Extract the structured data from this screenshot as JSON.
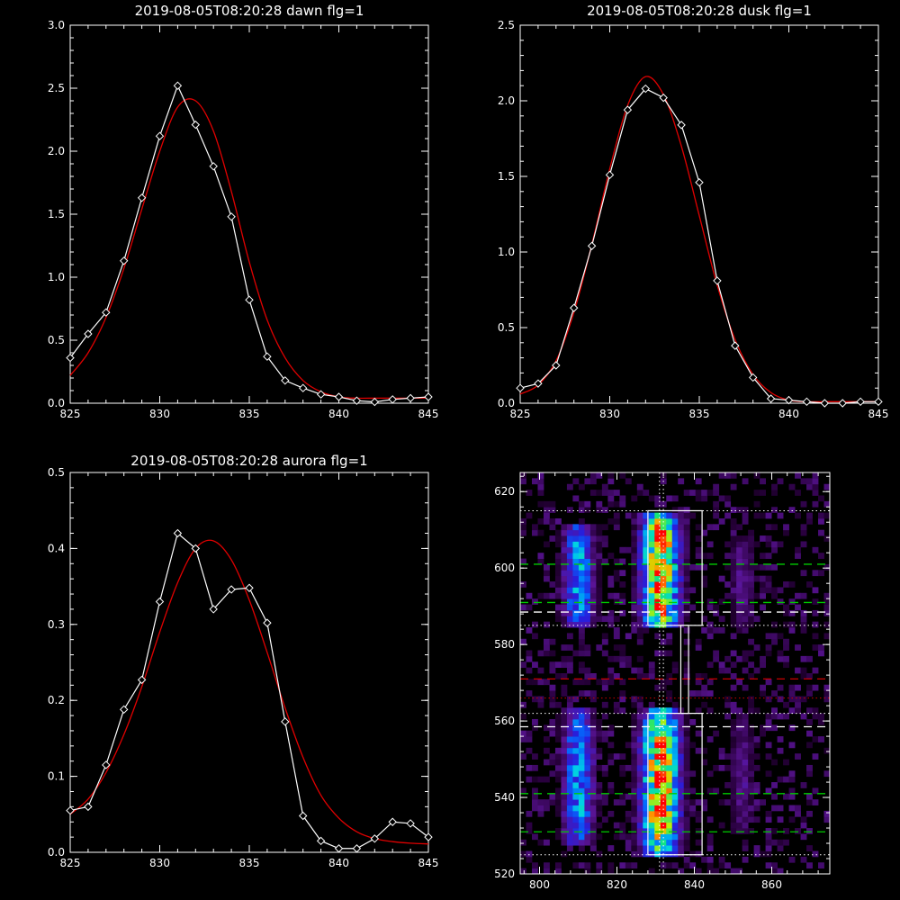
{
  "colors": {
    "background": "#000000",
    "axis": "#ffffff",
    "data": "#ffffff",
    "fit": "#e00000",
    "green_dash": "#00cc00",
    "red_dash": "#cc0000",
    "white_dash": "#ffffff"
  },
  "chart_data": [
    {
      "type": "line",
      "title": "2019-08-05T08:20:28 dawn flg=1",
      "xlabel": "",
      "ylabel": "",
      "xlim": [
        825,
        845
      ],
      "ylim": [
        0,
        3.0
      ],
      "xticks": [
        "825",
        "830",
        "835",
        "840",
        "845"
      ],
      "yticks": [
        "0.0",
        "0.5",
        "1.0",
        "1.5",
        "2.0",
        "2.5",
        "3.0"
      ],
      "x": [
        825,
        826,
        827,
        828,
        829,
        830,
        831,
        832,
        833,
        834,
        835,
        836,
        837,
        838,
        839,
        840,
        841,
        842,
        843,
        844,
        845
      ],
      "series": [
        {
          "role": "data",
          "marker": "diamond",
          "values": [
            0.36,
            0.55,
            0.72,
            1.13,
            1.63,
            2.12,
            2.52,
            2.21,
            1.88,
            1.48,
            0.82,
            0.37,
            0.18,
            0.12,
            0.07,
            0.05,
            0.02,
            0.01,
            0.03,
            0.04,
            0.05
          ]
        },
        {
          "role": "fit",
          "values": [
            0.22,
            0.4,
            0.68,
            1.07,
            1.54,
            2.0,
            2.35,
            2.4,
            2.16,
            1.68,
            1.12,
            0.66,
            0.36,
            0.18,
            0.09,
            0.05,
            0.04,
            0.04,
            0.04,
            0.04,
            0.04
          ]
        }
      ]
    },
    {
      "type": "line",
      "title": "2019-08-05T08:20:28 dusk flg=1",
      "xlabel": "",
      "ylabel": "",
      "xlim": [
        825,
        845
      ],
      "ylim": [
        0,
        2.5
      ],
      "xticks": [
        "825",
        "830",
        "835",
        "840",
        "845"
      ],
      "yticks": [
        "0.0",
        "0.5",
        "1.0",
        "1.5",
        "2.0",
        "2.5"
      ],
      "x": [
        825,
        826,
        827,
        828,
        829,
        830,
        831,
        832,
        833,
        834,
        835,
        836,
        837,
        838,
        839,
        840,
        841,
        842,
        843,
        844,
        845
      ],
      "series": [
        {
          "role": "data",
          "marker": "diamond",
          "values": [
            0.1,
            0.13,
            0.25,
            0.63,
            1.04,
            1.51,
            1.94,
            2.08,
            2.02,
            1.84,
            1.46,
            0.81,
            0.38,
            0.17,
            0.03,
            0.02,
            0.01,
            0.0,
            0.0,
            0.01,
            0.01
          ]
        },
        {
          "role": "fit",
          "values": [
            0.06,
            0.12,
            0.28,
            0.6,
            1.05,
            1.55,
            1.97,
            2.16,
            2.04,
            1.7,
            1.24,
            0.78,
            0.42,
            0.19,
            0.07,
            0.02,
            0.01,
            0.01,
            0.01,
            0.01,
            0.01
          ]
        }
      ]
    },
    {
      "type": "line",
      "title": "2019-08-05T08:20:28 aurora flg=1",
      "xlabel": "",
      "ylabel": "",
      "xlim": [
        825,
        845
      ],
      "ylim": [
        0,
        0.5
      ],
      "xticks": [
        "825",
        "830",
        "835",
        "840",
        "845"
      ],
      "yticks": [
        "0.0",
        "0.1",
        "0.2",
        "0.3",
        "0.4",
        "0.5"
      ],
      "x": [
        825,
        826,
        827,
        828,
        829,
        830,
        831,
        832,
        833,
        834,
        835,
        836,
        837,
        838,
        839,
        840,
        841,
        842,
        843,
        844,
        845
      ],
      "series": [
        {
          "role": "data",
          "marker": "diamond",
          "values": [
            0.055,
            0.06,
            0.115,
            0.188,
            0.227,
            0.33,
            0.42,
            0.4,
            0.32,
            0.346,
            0.348,
            0.302,
            0.172,
            0.048,
            0.015,
            0.005,
            0.005,
            0.018,
            0.04,
            0.038,
            0.02
          ]
        },
        {
          "role": "fit",
          "values": [
            0.05,
            0.07,
            0.105,
            0.155,
            0.218,
            0.29,
            0.355,
            0.4,
            0.41,
            0.385,
            0.332,
            0.263,
            0.19,
            0.125,
            0.075,
            0.045,
            0.027,
            0.018,
            0.014,
            0.012,
            0.011
          ]
        }
      ]
    },
    {
      "type": "heatmap",
      "title": "",
      "xlim": [
        795,
        875
      ],
      "ylim": [
        520,
        625
      ],
      "xticks": [
        "800",
        "820",
        "840",
        "860"
      ],
      "yticks": [
        "520",
        "540",
        "560",
        "580",
        "600",
        "620"
      ],
      "bands": [
        {
          "x": 810,
          "width": 5,
          "strength": 0.55,
          "segments": [
            [
              585,
              612
            ],
            [
              527,
              563
            ]
          ]
        },
        {
          "x": 831,
          "width": 6,
          "strength": 1.0,
          "segments": [
            [
              584,
              615
            ],
            [
              525,
              563
            ]
          ]
        },
        {
          "x": 852,
          "width": 4,
          "strength": 0.22,
          "segments": [
            [
              585,
              608
            ],
            [
              530,
              562
            ]
          ]
        }
      ],
      "boxes": [
        {
          "x": [
            828,
            842
          ],
          "y": [
            525,
            562
          ]
        },
        {
          "x": [
            828,
            842
          ],
          "y": [
            585,
            615
          ]
        },
        {
          "x": [
            836.5,
            838.5
          ],
          "y": [
            562,
            585
          ]
        }
      ],
      "vlines_dotted": [
        831,
        832
      ],
      "hlines": [
        {
          "y": 615,
          "style": "dotted",
          "color": "white"
        },
        {
          "y": 601,
          "style": "dashed",
          "color": "green"
        },
        {
          "y": 591,
          "style": "dashed",
          "color": "green"
        },
        {
          "y": 588.5,
          "style": "dashed",
          "color": "white"
        },
        {
          "y": 585,
          "style": "dotted",
          "color": "white"
        },
        {
          "y": 571,
          "style": "dashed",
          "color": "red"
        },
        {
          "y": 566,
          "style": "dotted",
          "color": "red"
        },
        {
          "y": 562,
          "style": "dotted",
          "color": "white"
        },
        {
          "y": 558.5,
          "style": "dashed",
          "color": "white"
        },
        {
          "y": 541,
          "style": "dashed",
          "color": "green"
        },
        {
          "y": 531,
          "style": "dashed",
          "color": "green"
        },
        {
          "y": 525,
          "style": "dotted",
          "color": "white"
        }
      ]
    }
  ]
}
